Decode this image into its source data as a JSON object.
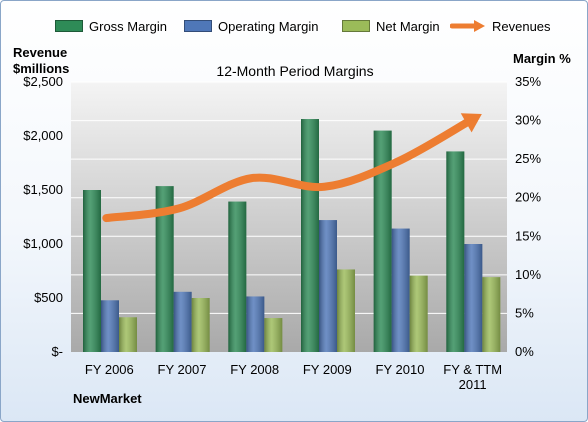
{
  "chart_data": {
    "type": "bar",
    "title": "12-Month Period Margins",
    "left_axis_label_line1": "Revenue",
    "left_axis_label_line2": "$millions",
    "right_axis_label": "Margin %",
    "company": "NewMarket",
    "categories": [
      [
        "FY 2006"
      ],
      [
        "FY 2007"
      ],
      [
        "FY 2008"
      ],
      [
        "FY 2009"
      ],
      [
        "FY 2010"
      ],
      [
        "FY & TTM",
        "2011"
      ]
    ],
    "left_ylim": [
      0,
      2500
    ],
    "left_ticks": [
      "$-",
      "$500",
      "$1,000",
      "$1,500",
      "$2,000",
      "$2,500"
    ],
    "right_ylim": [
      0,
      35
    ],
    "right_ticks": [
      "0%",
      "5%",
      "10%",
      "15%",
      "20%",
      "25%",
      "30%",
      "35%"
    ],
    "series": [
      {
        "name": "Gross Margin",
        "color": "#2e8b57",
        "axis": "right",
        "values": [
          21,
          21.5,
          19.5,
          30.2,
          28.7,
          26
        ]
      },
      {
        "name": "Operating Margin",
        "color": "#4f77b8",
        "axis": "right",
        "values": [
          6.7,
          7.8,
          7.2,
          17.1,
          16,
          14
        ]
      },
      {
        "name": "Net Margin",
        "color": "#9bbb59",
        "axis": "right",
        "values": [
          4.5,
          7,
          4.4,
          10.7,
          9.9,
          9.7
        ]
      }
    ],
    "line_series": {
      "name": "Revenues",
      "color": "#ed7d31",
      "axis": "left",
      "values": [
        1240,
        1330,
        1610,
        1530,
        1760,
        2140
      ]
    },
    "grid": true,
    "legend_position": "top"
  }
}
